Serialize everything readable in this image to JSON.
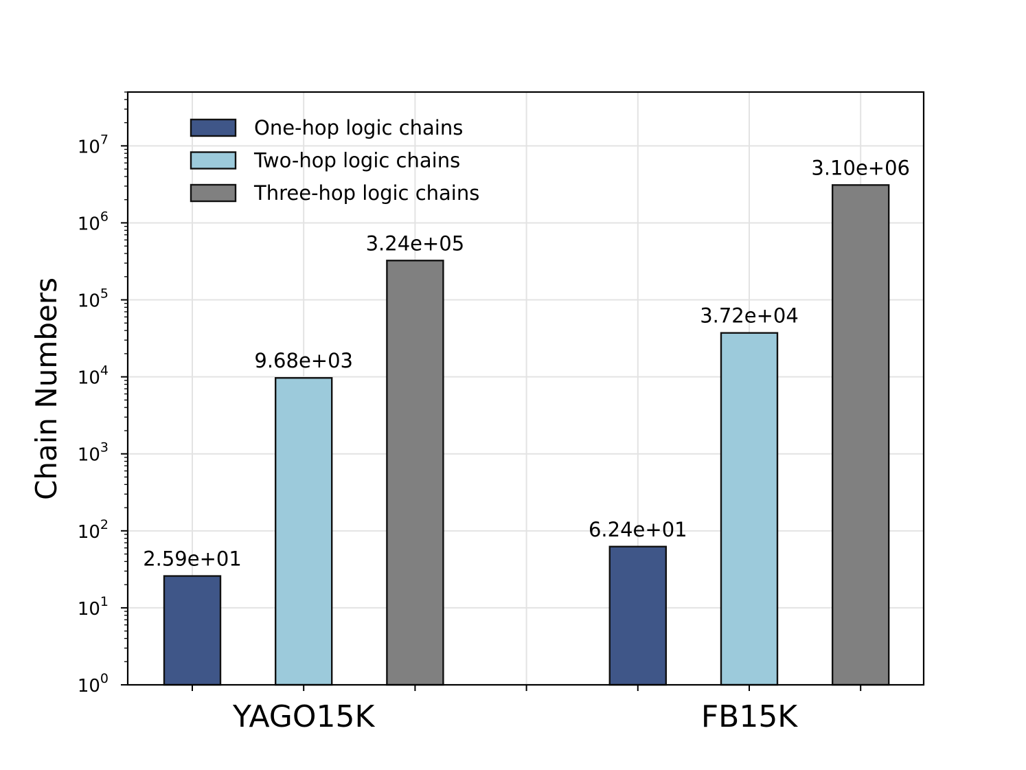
{
  "chart_data": {
    "type": "bar",
    "title": "",
    "xlabel": "",
    "ylabel": "Chain Numbers",
    "yscale": "log",
    "ylim": [
      1,
      50000000
    ],
    "grid": true,
    "legend_position": "top-left",
    "categories": [
      "YAGO15K",
      "FB15K"
    ],
    "series": [
      {
        "name": "One-hop logic chains",
        "color": "#3F5688",
        "values": [
          25.9,
          62.4
        ],
        "labels": [
          "2.59e+01",
          "6.24e+01"
        ]
      },
      {
        "name": "Two-hop logic chains",
        "color": "#9CCADB",
        "values": [
          9680,
          37200
        ],
        "labels": [
          "9.68e+03",
          "3.72e+04"
        ]
      },
      {
        "name": "Three-hop logic chains",
        "color": "#808080",
        "values": [
          324000,
          3100000
        ],
        "labels": [
          "3.24e+05",
          "3.10e+06"
        ]
      }
    ],
    "y_ticks": [
      {
        "exp": 0,
        "base": "10",
        "sup": "0"
      },
      {
        "exp": 1,
        "base": "10",
        "sup": "1"
      },
      {
        "exp": 2,
        "base": "10",
        "sup": "2"
      },
      {
        "exp": 3,
        "base": "10",
        "sup": "3"
      },
      {
        "exp": 4,
        "base": "10",
        "sup": "4"
      },
      {
        "exp": 5,
        "base": "10",
        "sup": "5"
      },
      {
        "exp": 6,
        "base": "10",
        "sup": "6"
      },
      {
        "exp": 7,
        "base": "10",
        "sup": "7"
      }
    ]
  }
}
